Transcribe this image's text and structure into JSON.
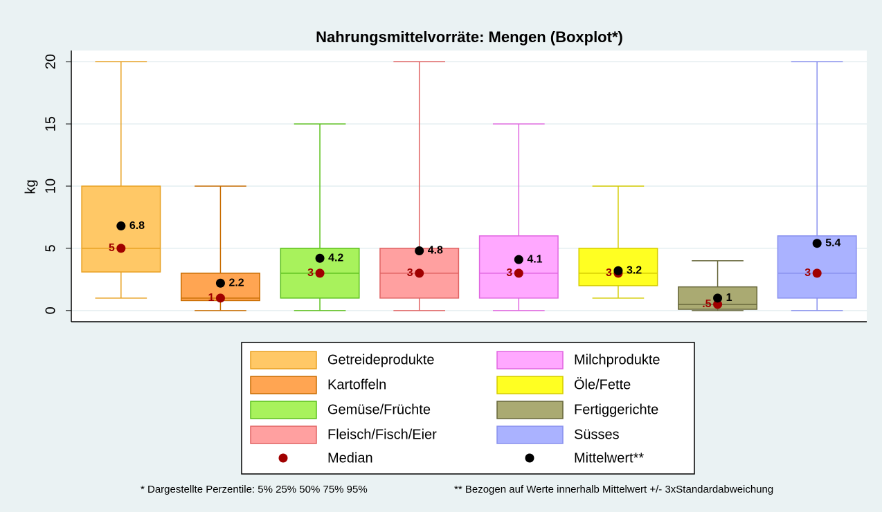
{
  "chart_data": {
    "type": "boxplot",
    "title": "Nahrungsmittelvorräte: Mengen (Boxplot*)",
    "ylabel": "kg",
    "ylim": [
      -0.9,
      20.9
    ],
    "yticks": [
      0,
      5,
      10,
      15,
      20
    ],
    "grid": true,
    "median_color": "#a00000",
    "mean_color": "#000000",
    "median_name": "Median",
    "mean_name": "Mittelwert**",
    "series": [
      {
        "name": "Getreideprodukte",
        "color": "#ffc866",
        "stroke": "#e8a020",
        "whisker_low": 1,
        "q1": 3.1,
        "median": 5,
        "q3": 10,
        "whisker_high": 20,
        "mean": 6.8
      },
      {
        "name": "Kartoffeln",
        "color": "#ffa552",
        "stroke": "#c86c00",
        "whisker_low": 0,
        "q1": 0.8,
        "median": 1,
        "q3": 3,
        "whisker_high": 10,
        "mean": 2.2
      },
      {
        "name": "Gemüse/Früchte",
        "color": "#a8f25c",
        "stroke": "#5cc01c",
        "whisker_low": 0,
        "q1": 1,
        "median": 3,
        "q3": 5,
        "whisker_high": 15,
        "mean": 4.2
      },
      {
        "name": "Fleisch/Fisch/Eier",
        "color": "#ffa0a0",
        "stroke": "#e06262",
        "whisker_low": 0,
        "q1": 1,
        "median": 3,
        "q3": 5,
        "whisker_high": 20,
        "mean": 4.8
      },
      {
        "name": "Milchprodukte",
        "color": "#ffa8ff",
        "stroke": "#e066e0",
        "whisker_low": 0,
        "q1": 1,
        "median": 3,
        "q3": 6,
        "whisker_high": 15,
        "mean": 4.1
      },
      {
        "name": "Öle/Fette",
        "color": "#ffff22",
        "stroke": "#d4cc00",
        "whisker_low": 1,
        "q1": 2,
        "median": 3,
        "q3": 5,
        "whisker_high": 10,
        "mean": 3.2
      },
      {
        "name": "Fertiggerichte",
        "color": "#aaaa72",
        "stroke": "#66663a",
        "whisker_low": 0,
        "q1": 0.1,
        "median": 0.5,
        "median_label": ".5",
        "q3": 1.9,
        "whisker_high": 4,
        "mean": 1
      },
      {
        "name": "Süsses",
        "color": "#aab2ff",
        "stroke": "#8890ee",
        "whisker_low": 0,
        "q1": 1,
        "median": 3,
        "q3": 6,
        "whisker_high": 20,
        "mean": 5.4
      }
    ],
    "notes": [
      "* Dargestellte Perzentile: 5% 25% 50% 75% 95%",
      "** Bezogen auf Werte innerhalb Mittelwert +/- 3xStandardabweichung"
    ]
  }
}
